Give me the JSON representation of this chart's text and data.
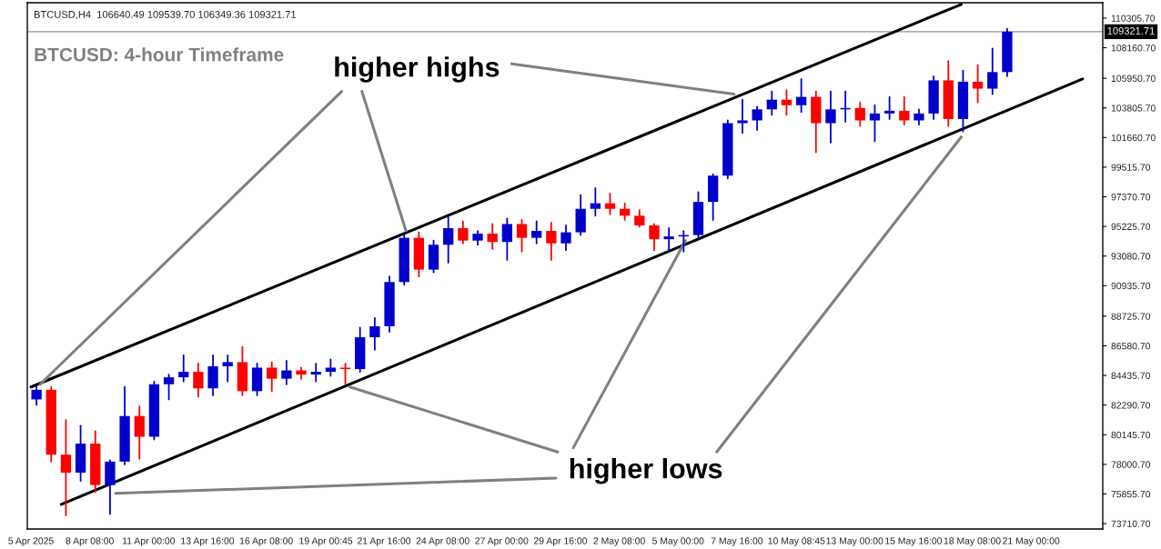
{
  "chart_data": {
    "type": "candlestick",
    "title": "BTCUSD,H4  106640.49 109539.70 106349.36 109321.71",
    "subtitle": "BTCUSD: 4-hour Timeframe",
    "annotations": [
      "higher highs",
      "higher lows"
    ],
    "x": [
      "2025-04-05T22:00",
      "2025-04-06T14:00",
      "2025-04-07T06:00",
      "2025-04-07T22:00",
      "2025-04-08T14:00",
      "2025-04-09T06:00",
      "2025-04-09T22:00",
      "2025-04-10T14:00",
      "2025-04-11T06:00",
      "2025-04-11T22:00",
      "2025-04-12T14:00",
      "2025-04-13T06:00",
      "2025-04-13T22:00",
      "2025-04-14T14:00",
      "2025-04-15T06:00",
      "2025-04-15T22:00",
      "2025-04-16T14:00",
      "2025-04-17T06:00",
      "2025-04-17T22:00",
      "2025-04-18T14:00",
      "2025-04-19T06:00",
      "2025-04-19T22:00",
      "2025-04-20T14:00",
      "2025-04-21T06:00",
      "2025-04-21T22:00",
      "2025-04-22T14:00",
      "2025-04-23T06:00",
      "2025-04-23T22:00",
      "2025-04-24T14:00",
      "2025-04-25T06:00",
      "2025-04-25T22:00",
      "2025-04-26T14:00",
      "2025-04-27T06:00",
      "2025-04-27T22:00",
      "2025-04-28T14:00",
      "2025-04-29T06:00",
      "2025-04-29T22:00",
      "2025-04-30T14:00",
      "2025-05-01T06:00",
      "2025-05-01T22:00",
      "2025-05-02T14:00",
      "2025-05-03T06:00",
      "2025-05-03T22:00",
      "2025-05-04T14:00",
      "2025-05-05T06:00",
      "2025-05-05T22:00",
      "2025-05-06T14:00",
      "2025-05-07T06:00",
      "2025-05-07T22:00",
      "2025-05-08T14:00",
      "2025-05-09T06:00",
      "2025-05-09T22:00",
      "2025-05-10T14:00",
      "2025-05-11T06:00",
      "2025-05-11T22:00",
      "2025-05-12T14:00",
      "2025-05-13T06:00",
      "2025-05-13T22:00",
      "2025-05-14T14:00",
      "2025-05-15T06:00",
      "2025-05-15T22:00",
      "2025-05-16T14:00",
      "2025-05-17T06:00",
      "2025-05-17T22:00",
      "2025-05-18T14:00",
      "2025-05-19T06:00",
      "2025-05-19T22:00"
    ],
    "ohlc": [
      [
        82700,
        83700,
        82300,
        83400
      ],
      [
        83400,
        83600,
        78200,
        78700
      ],
      [
        78700,
        81200,
        74300,
        77400
      ],
      [
        77400,
        80800,
        76800,
        79500
      ],
      [
        79500,
        80400,
        76000,
        76500
      ],
      [
        76500,
        78300,
        74400,
        78200
      ],
      [
        78200,
        83600,
        78000,
        81500
      ],
      [
        81500,
        82200,
        78400,
        80000
      ],
      [
        80000,
        84000,
        79800,
        83800
      ],
      [
        83800,
        84500,
        82700,
        84300
      ],
      [
        84300,
        85900,
        84000,
        84700
      ],
      [
        84700,
        85300,
        82900,
        83500
      ],
      [
        83500,
        85900,
        83000,
        85100
      ],
      [
        85100,
        85900,
        84000,
        85400
      ],
      [
        85400,
        86500,
        83000,
        83300
      ],
      [
        83300,
        85300,
        83000,
        85000
      ],
      [
        85000,
        85400,
        83300,
        84200
      ],
      [
        84200,
        85500,
        83800,
        84800
      ],
      [
        84800,
        85000,
        84200,
        84500
      ],
      [
        84500,
        85300,
        84000,
        84700
      ],
      [
        84700,
        85600,
        84400,
        85000
      ],
      [
        85000,
        85300,
        83800,
        84900
      ],
      [
        84900,
        87900,
        84700,
        87200
      ],
      [
        87200,
        88600,
        86300,
        88000
      ],
      [
        88000,
        91600,
        87600,
        91200
      ],
      [
        91200,
        94700,
        91000,
        94400
      ],
      [
        94400,
        94800,
        91600,
        92100
      ],
      [
        92100,
        94200,
        91900,
        93900
      ],
      [
        93900,
        95900,
        92600,
        95100
      ],
      [
        95100,
        95600,
        94000,
        94200
      ],
      [
        94200,
        94900,
        93900,
        94700
      ],
      [
        94700,
        95400,
        93600,
        94100
      ],
      [
        94100,
        95800,
        92800,
        95400
      ],
      [
        95400,
        95700,
        93400,
        94400
      ],
      [
        94400,
        95600,
        94000,
        94900
      ],
      [
        94900,
        95500,
        92800,
        94000
      ],
      [
        94000,
        95300,
        93500,
        94800
      ],
      [
        94800,
        97500,
        94600,
        96500
      ],
      [
        96500,
        98000,
        96000,
        96900
      ],
      [
        96900,
        97600,
        96100,
        96500
      ],
      [
        96500,
        96900,
        95700,
        96000
      ],
      [
        96000,
        96400,
        95200,
        95300
      ],
      [
        95300,
        95400,
        93500,
        94300
      ],
      [
        94300,
        95100,
        93500,
        94500
      ],
      [
        94500,
        94900,
        93400,
        94600
      ],
      [
        94600,
        97700,
        94300,
        97000
      ],
      [
        97000,
        99000,
        95700,
        98900
      ],
      [
        98900,
        102900,
        98700,
        102700
      ],
      [
        102700,
        104400,
        102000,
        102900
      ],
      [
        102900,
        103900,
        102200,
        103700
      ],
      [
        103700,
        105000,
        103300,
        104400
      ],
      [
        104400,
        105100,
        103300,
        104000
      ],
      [
        104000,
        105900,
        103500,
        104600
      ],
      [
        104600,
        105000,
        100600,
        102700
      ],
      [
        102700,
        105000,
        101300,
        103700
      ],
      [
        103700,
        105000,
        102800,
        103800
      ],
      [
        103800,
        104200,
        102500,
        102900
      ],
      [
        102900,
        104000,
        101400,
        103400
      ],
      [
        103400,
        104600,
        103000,
        103600
      ],
      [
        103600,
        104600,
        102600,
        102900
      ],
      [
        102900,
        103700,
        102600,
        103400
      ],
      [
        103400,
        106100,
        103000,
        105800
      ],
      [
        105800,
        107200,
        102500,
        103000
      ],
      [
        103000,
        106500,
        102100,
        105700
      ],
      [
        105700,
        106900,
        104200,
        105200
      ],
      [
        105200,
        108100,
        104800,
        106400
      ],
      [
        106400,
        109540,
        106100,
        109320
      ]
    ],
    "colors": [
      "#0000cc",
      "#ff0000",
      "#ff0000",
      "#0000cc",
      "#ff0000",
      "#0000cc",
      "#0000cc",
      "#ff0000",
      "#0000cc",
      "#0000cc",
      "#0000cc",
      "#ff0000",
      "#0000cc",
      "#0000cc",
      "#ff0000",
      "#0000cc",
      "#ff0000",
      "#0000cc",
      "#ff0000",
      "#0000cc",
      "#0000cc",
      "#ff0000",
      "#0000cc",
      "#0000cc",
      "#0000cc",
      "#0000cc",
      "#ff0000",
      "#0000cc",
      "#0000cc",
      "#ff0000",
      "#0000cc",
      "#ff0000",
      "#0000cc",
      "#ff0000",
      "#0000cc",
      "#ff0000",
      "#0000cc",
      "#0000cc",
      "#0000cc",
      "#ff0000",
      "#ff0000",
      "#ff0000",
      "#ff0000",
      "#0000cc",
      "#0000cc",
      "#0000cc",
      "#0000cc",
      "#0000cc",
      "#0000cc",
      "#0000cc",
      "#0000cc",
      "#ff0000",
      "#0000cc",
      "#ff0000",
      "#0000cc",
      "#0000cc",
      "#ff0000",
      "#0000cc",
      "#0000cc",
      "#ff0000",
      "#0000cc",
      "#0000cc",
      "#ff0000",
      "#0000cc",
      "#ff0000",
      "#0000cc",
      "#0000cc"
    ],
    "series": [
      {
        "type": "line",
        "color": "#000000",
        "x": [
          "2025-04-05T16:00",
          "2025-05-17T20:00"
        ],
        "values": [
          83600,
          111300
        ]
      },
      {
        "type": "line",
        "color": "#000000",
        "x": [
          "2025-04-07T01:00",
          "2025-05-23T08:00"
        ],
        "values": [
          75100,
          105900
        ]
      },
      {
        "type": "line",
        "color": "#808080",
        "x": [
          "2025-04-19T18:00",
          "2025-04-06T02:00"
        ],
        "values": [
          105000,
          83800
        ]
      },
      {
        "type": "line",
        "color": "#808080",
        "x": [
          "2025-04-20T16:00",
          "2025-04-22T16:00"
        ],
        "values": [
          105000,
          94900
        ]
      },
      {
        "type": "line",
        "color": "#808080",
        "x": [
          "2025-04-27T11:00",
          "2025-05-07T13:00"
        ],
        "values": [
          107000,
          104800
        ]
      },
      {
        "type": "line",
        "color": "#808080",
        "x": [
          "2025-04-29T13:00",
          "2025-04-20T03:00"
        ],
        "values": [
          78900,
          83600
        ]
      },
      {
        "type": "line",
        "color": "#808080",
        "x": [
          "2025-04-30T06:00",
          "2025-05-05T08:00"
        ],
        "values": [
          79200,
          94200
        ]
      },
      {
        "type": "line",
        "color": "#808080",
        "x": [
          "2025-05-06T18:00",
          "2025-05-17T20:00"
        ],
        "values": [
          78900,
          101700
        ]
      },
      {
        "type": "line",
        "color": "#808080",
        "x": [
          "2025-04-29T11:00",
          "2025-04-09T12:00"
        ],
        "values": [
          77000,
          75900
        ]
      }
    ],
    "ref_lines": [
      {
        "axis": "y",
        "value": 109321.71,
        "label": "109321.71",
        "color": "#8a96a8"
      }
    ],
    "xlim": [
      "2025-04-05T12:00",
      "2025-05-24T06:00"
    ],
    "ylim": [
      73320,
      111420
    ],
    "xticks": [
      {
        "value": "2025-04-05T16:00",
        "label": "5 Apr 2025"
      },
      {
        "value": "2025-04-08T08:00",
        "label": "8 Apr 08:00"
      },
      {
        "value": "2025-04-11T00:00",
        "label": "11 Apr 00:00"
      },
      {
        "value": "2025-04-13T16:00",
        "label": "13 Apr 16:00"
      },
      {
        "value": "2025-04-16T08:00",
        "label": "16 Apr 08:00"
      },
      {
        "value": "2025-04-19T00:45",
        "label": "19 Apr 00:45"
      },
      {
        "value": "2025-04-21T16:00",
        "label": "21 Apr 16:00"
      },
      {
        "value": "2025-04-24T08:00",
        "label": "24 Apr 08:00"
      },
      {
        "value": "2025-04-27T00:00",
        "label": "27 Apr 00:00"
      },
      {
        "value": "2025-04-29T16:00",
        "label": "29 Apr 16:00"
      },
      {
        "value": "2025-05-02T08:00",
        "label": "2 May 08:00"
      },
      {
        "value": "2025-05-05T00:00",
        "label": "5 May 00:00"
      },
      {
        "value": "2025-05-07T16:00",
        "label": "7 May 16:00"
      },
      {
        "value": "2025-05-10T08:45",
        "label": "10 May 08:45"
      },
      {
        "value": "2025-05-13T00:00",
        "label": "13 May 00:00"
      },
      {
        "value": "2025-05-15T16:00",
        "label": "15 May 16:00"
      },
      {
        "value": "2025-05-18T08:00",
        "label": "18 May 08:00"
      },
      {
        "value": "2025-05-21T00:00",
        "label": "21 May 00:00"
      }
    ],
    "yticks": [
      {
        "value": 73710.7,
        "label": "73710.70"
      },
      {
        "value": 75855.7,
        "label": "75855.70"
      },
      {
        "value": 78000.7,
        "label": "78000.70"
      },
      {
        "value": 80145.7,
        "label": "80145.70"
      },
      {
        "value": 82290.7,
        "label": "82290.70"
      },
      {
        "value": 84435.7,
        "label": "84435.70"
      },
      {
        "value": 86580.7,
        "label": "86580.70"
      },
      {
        "value": 88725.7,
        "label": "88725.70"
      },
      {
        "value": 90935.7,
        "label": "90935.70"
      },
      {
        "value": 93080.7,
        "label": "93080.70"
      },
      {
        "value": 95225.7,
        "label": "95225.70"
      },
      {
        "value": 97370.7,
        "label": "97370.70"
      },
      {
        "value": 99515.7,
        "label": "99515.70"
      },
      {
        "value": 101660.7,
        "label": "101660.70"
      },
      {
        "value": 103805.7,
        "label": "103805.70"
      },
      {
        "value": 105950.7,
        "label": "105950.70"
      },
      {
        "value": 108160.7,
        "label": "108160.70"
      },
      {
        "value": 110305.7,
        "label": "110305.70"
      }
    ]
  }
}
